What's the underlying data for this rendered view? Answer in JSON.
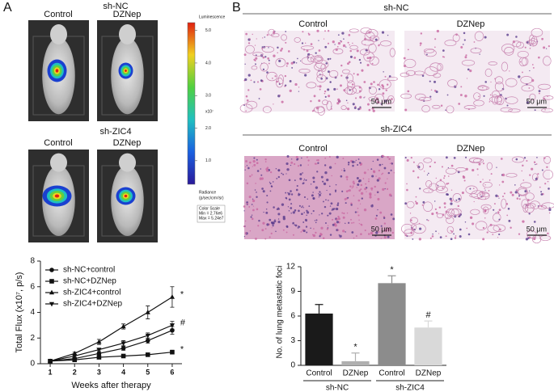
{
  "panel_labels": [
    "A",
    "B"
  ],
  "panel_a": {
    "groups": [
      {
        "title": "sh-NC",
        "columns": [
          "Control",
          "DZNep"
        ]
      },
      {
        "title": "sh-ZIC4",
        "columns": [
          "Control",
          "DZNep"
        ]
      }
    ],
    "colorbar": {
      "title": "Luminescence",
      "multiplier": "x10⁷",
      "ticks": [
        {
          "value": 5,
          "label": "5.0"
        },
        {
          "value": 4,
          "label": "4.0"
        },
        {
          "value": 3,
          "label": "3.0"
        },
        {
          "value": 2,
          "label": "2.0"
        },
        {
          "value": 1,
          "label": "1.0"
        }
      ],
      "range": [
        0.276,
        5.24
      ],
      "unit_title": "Radiance",
      "unit": "(p/sec/cm²/sr)",
      "scale_title": "Color Scale",
      "min_label": "Min = 2.76e6",
      "max_label": "Max = 5.24e7"
    }
  },
  "panel_b": {
    "groups": [
      {
        "title": "sh-NC",
        "columns": [
          "Control",
          "DZNep"
        ]
      },
      {
        "title": "sh-ZIC4",
        "columns": [
          "Control",
          "DZNep"
        ]
      }
    ],
    "scale_bar": "50 μm"
  },
  "chart_data": [
    {
      "type": "line",
      "ylabel": "Total Flux (x10⁷, p/s)",
      "xlabel": "Weeks after therapy",
      "x": [
        1,
        2,
        3,
        4,
        5,
        6
      ],
      "xlim": [
        0.6,
        6.4
      ],
      "xticks": [
        1,
        2,
        3,
        4,
        5,
        6
      ],
      "ylim": [
        0,
        8
      ],
      "yticks": [
        0,
        2,
        4,
        6,
        8
      ],
      "legend": "top-left",
      "series": [
        {
          "name": "sh-NC+control",
          "color": "#111111",
          "marker": "circle",
          "values": [
            0.2,
            0.4,
            0.8,
            1.2,
            1.8,
            2.6
          ],
          "errors": [
            0.05,
            0.1,
            0.1,
            0.15,
            0.2,
            0.3
          ]
        },
        {
          "name": "sh-NC+DZNep",
          "color": "#111111",
          "marker": "square",
          "values": [
            0.2,
            0.3,
            0.5,
            0.6,
            0.7,
            0.9
          ],
          "errors": [
            0.05,
            0.05,
            0.1,
            0.1,
            0.1,
            0.15
          ],
          "annotation": "*"
        },
        {
          "name": "sh-ZIC4+control",
          "color": "#111111",
          "marker": "triangle-up",
          "values": [
            0.2,
            0.8,
            1.7,
            2.9,
            4.0,
            5.2
          ],
          "errors": [
            0.05,
            0.1,
            0.2,
            0.2,
            0.5,
            0.8
          ],
          "annotation": "*"
        },
        {
          "name": "sh-ZIC4+DZNep",
          "color": "#111111",
          "marker": "triangle-down",
          "values": [
            0.2,
            0.6,
            1.1,
            1.6,
            2.2,
            3.0
          ],
          "errors": [
            0.05,
            0.1,
            0.1,
            0.2,
            0.2,
            0.3
          ],
          "annotation": "#"
        }
      ]
    },
    {
      "type": "bar",
      "ylabel": "No. of lung metastatic foci",
      "categories": [
        "Control",
        "DZNep",
        "Control",
        "DZNep"
      ],
      "values": [
        6.3,
        0.5,
        10.0,
        4.6
      ],
      "errors": [
        1.1,
        1.0,
        0.9,
        0.8
      ],
      "colors": [
        "#1a1a1a",
        "#b0b0b0",
        "#8c8c8c",
        "#d9d9d9"
      ],
      "annotations": [
        null,
        "*",
        "*",
        "#"
      ],
      "groups": [
        {
          "label": "sh-NC",
          "span": 2
        },
        {
          "label": "sh-ZIC4",
          "span": 2
        }
      ],
      "ylim": [
        0,
        12
      ],
      "yticks": [
        0,
        3,
        6,
        9,
        12
      ]
    }
  ]
}
